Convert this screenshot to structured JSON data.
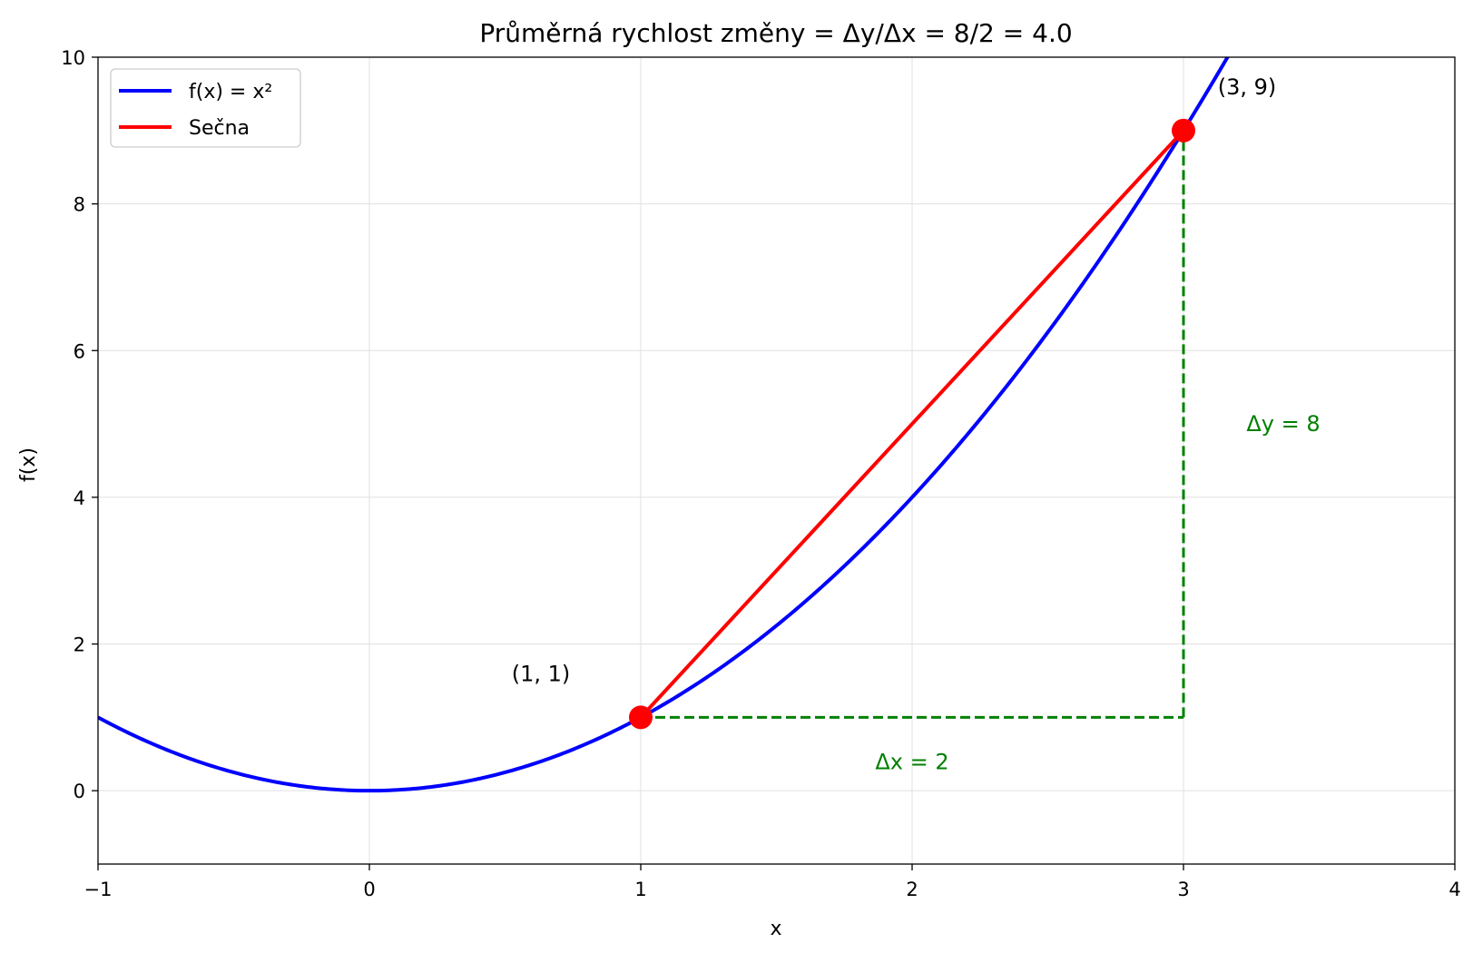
{
  "chart_data": {
    "type": "line",
    "title": "Průměrná rychlost změny = Δy/Δx = 8/2 = 4.0",
    "xlabel": "x",
    "ylabel": "f(x)",
    "xlim": [
      -1,
      4
    ],
    "ylim": [
      -1,
      10
    ],
    "xticks": [
      -1,
      0,
      1,
      2,
      3,
      4
    ],
    "xtick_labels": [
      "−1",
      "0",
      "1",
      "2",
      "3",
      "4"
    ],
    "yticks": [
      0,
      2,
      4,
      6,
      8,
      10
    ],
    "ytick_labels": [
      "0",
      "2",
      "4",
      "6",
      "8",
      "10"
    ],
    "grid": true,
    "legend_position": "top-left",
    "series": [
      {
        "name": "f(x) = x²",
        "kind": "function",
        "function": "x^2",
        "x_range": [
          -1,
          4
        ],
        "color": "#0000ff"
      },
      {
        "name": "Sečna",
        "kind": "segment",
        "x": [
          1,
          3
        ],
        "y": [
          1,
          9
        ],
        "color": "#ff0000"
      }
    ],
    "points": [
      {
        "x": 1,
        "y": 1,
        "label": "(1, 1)",
        "color": "#ff0000"
      },
      {
        "x": 3,
        "y": 9,
        "label": "(3, 9)",
        "color": "#ff0000"
      }
    ],
    "guides": [
      {
        "x": [
          1,
          3
        ],
        "y": [
          1,
          1
        ],
        "label": "Δx = 2",
        "color": "#008000",
        "style": "dashed"
      },
      {
        "x": [
          3,
          3
        ],
        "y": [
          1,
          9
        ],
        "label": "Δy = 8",
        "color": "#008000",
        "style": "dashed"
      }
    ]
  }
}
